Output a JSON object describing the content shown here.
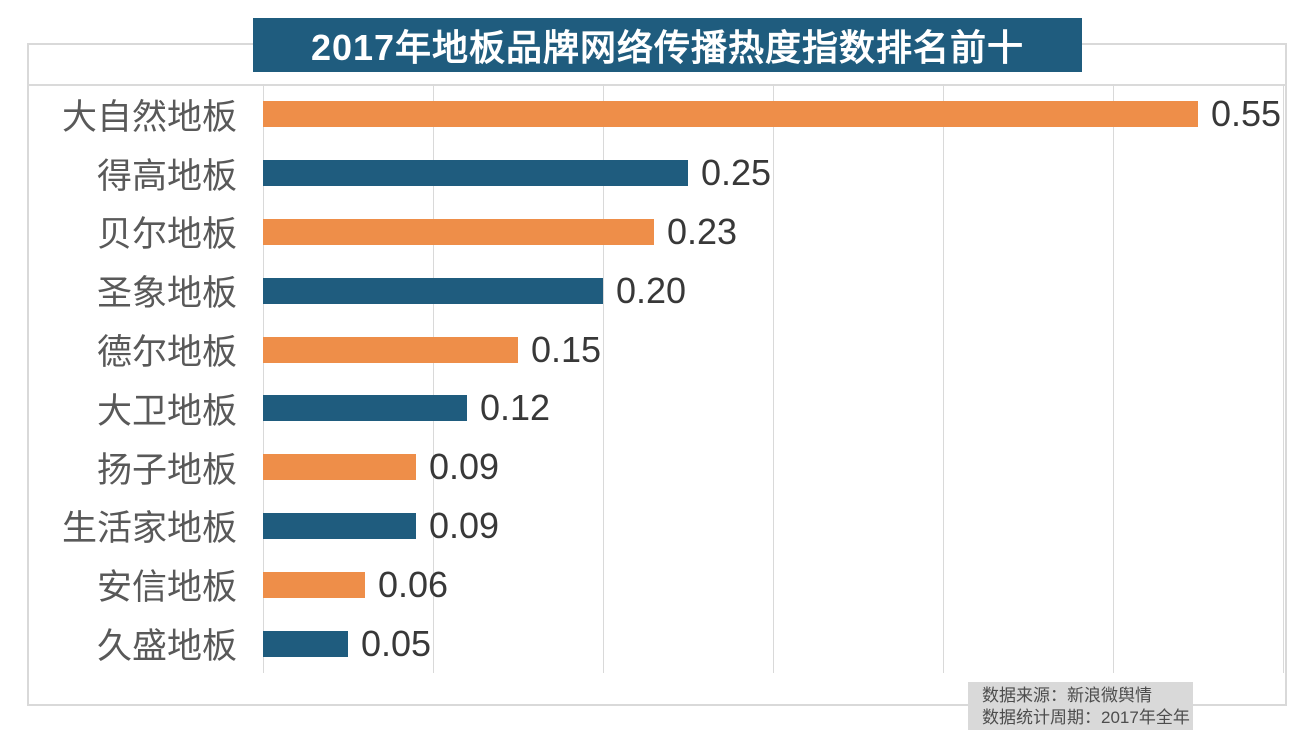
{
  "title": "2017年地板品牌网络传播热度指数排名前十",
  "source": {
    "line1": "数据来源：新浪微舆情",
    "line2": "数据统计周期：2017年全年"
  },
  "colors": {
    "orange_bar": "#EE8E49",
    "blue_bar": "#1F5C7E",
    "title_bg": "#1F5C7E",
    "title_text": "#FFFFFF",
    "grid": "#D9D9D9",
    "category_label": "#595959",
    "value_label": "#383838",
    "source_bg": "#D9D9D9",
    "source_text": "#4D4D4D"
  },
  "chart_data": {
    "type": "bar",
    "orientation": "horizontal",
    "title": "2017年地板品牌网络传播热度指数排名前十",
    "categories": [
      "大自然地板",
      "得高地板",
      "贝尔地板",
      "圣象地板",
      "德尔地板",
      "大卫地板",
      "扬子地板",
      "生活家地板",
      "安信地板",
      "久盛地板"
    ],
    "values": [
      0.55,
      0.25,
      0.23,
      0.2,
      0.15,
      0.12,
      0.09,
      0.09,
      0.06,
      0.05
    ],
    "value_labels": [
      "0.55",
      "0.25",
      "0.23",
      "0.20",
      "0.15",
      "0.12",
      "0.09",
      "0.09",
      "0.06",
      "0.05"
    ],
    "bar_colors": [
      "#EE8E49",
      "#1F5C7E",
      "#EE8E49",
      "#1F5C7E",
      "#EE8E49",
      "#1F5C7E",
      "#EE8E49",
      "#1F5C7E",
      "#EE8E49",
      "#1F5C7E"
    ],
    "xlim": [
      0,
      0.6
    ],
    "grid_interval": 0.1,
    "grid": true,
    "legend": false,
    "xlabel": "",
    "ylabel": ""
  }
}
